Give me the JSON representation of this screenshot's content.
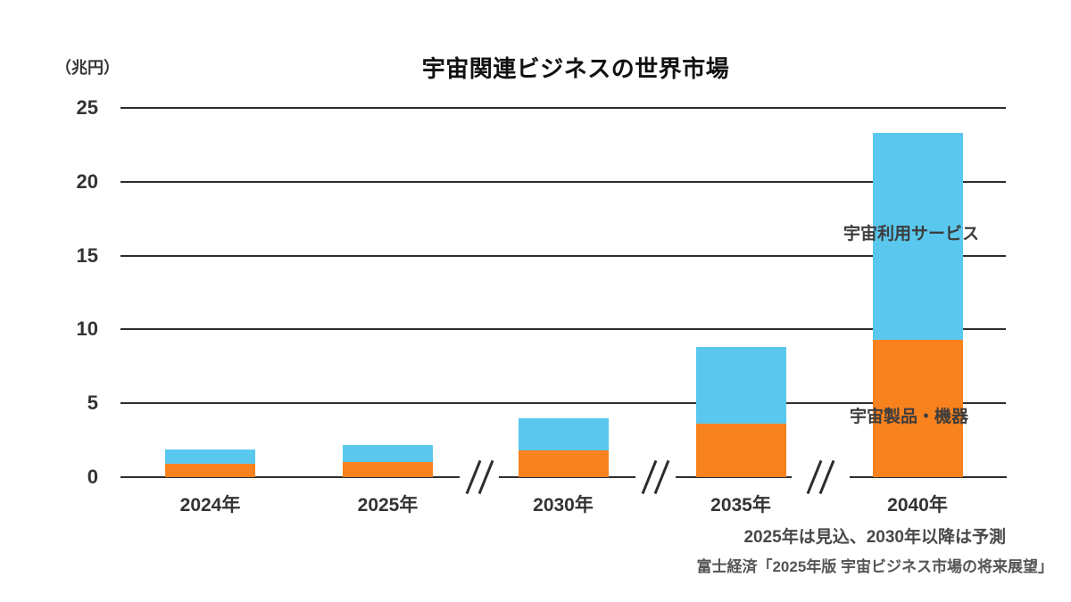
{
  "chart_data": {
    "type": "bar",
    "stacked": true,
    "title": "宇宙関連ビジネスの世界市場",
    "y_axis_unit": "（兆円）",
    "categories": [
      "2024年",
      "2025年",
      "2030年",
      "2035年",
      "2040年"
    ],
    "series": [
      {
        "name": "宇宙製品・機器",
        "color": "#F8821E",
        "values": [
          0.9,
          1.0,
          1.8,
          3.6,
          9.3
        ]
      },
      {
        "name": "宇宙利用サービス",
        "color": "#5AC8EE",
        "values": [
          1.0,
          1.2,
          2.2,
          5.2,
          14.0
        ]
      }
    ],
    "y_ticks": [
      0,
      5,
      10,
      15,
      20,
      25
    ],
    "ylim": [
      0,
      25
    ],
    "grid": "horizontal",
    "x_axis_breaks_between": [
      "2025年|2030年",
      "2030年|2035年",
      "2035年|2040年"
    ],
    "legend_position": "inline-annotations-on-2040-bar"
  },
  "annotations": {
    "services_label": "宇宙利用サービス",
    "products_label": "宇宙製品・機器"
  },
  "footnotes": {
    "note": "2025年は見込、2030年以降は予測",
    "source": "富士経済「2025年版 宇宙ビジネス市場の将来展望」"
  },
  "colors": {
    "products": "#F8821E",
    "services": "#5AC8EE",
    "axis": "#2d2d2d"
  }
}
